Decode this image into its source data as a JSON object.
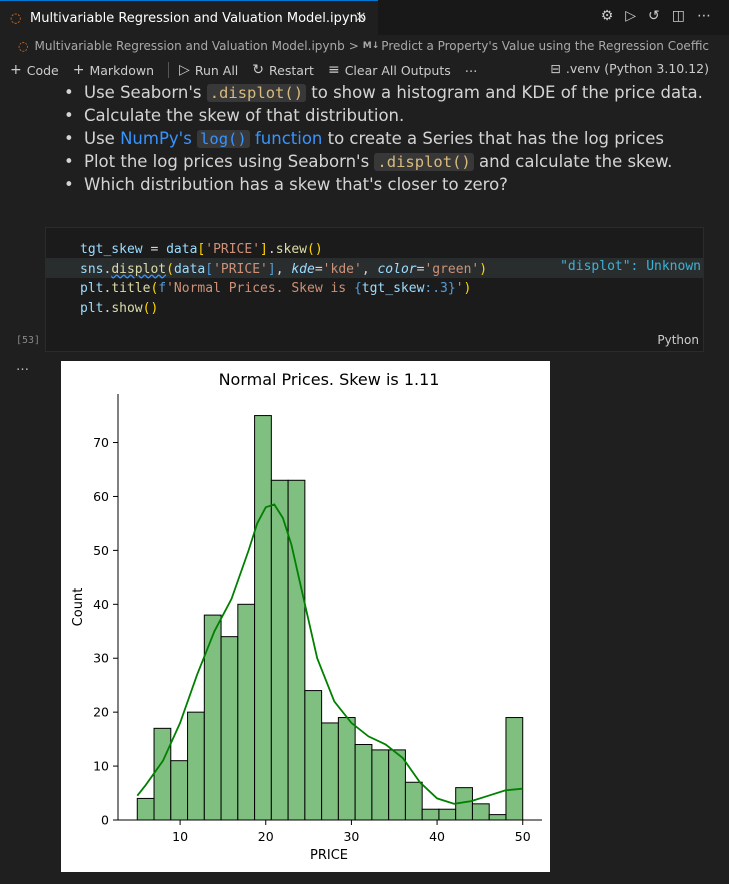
{
  "tab": {
    "title": "Multivariable Regression and Valuation Model.ipynb",
    "close": "×"
  },
  "tab_actions": {
    "settings": "⚙",
    "run": "▷",
    "history": "↺",
    "split": "◫",
    "more": "⋯"
  },
  "breadcrumb": {
    "file": "Multivariable Regression and Valuation Model.ipynb",
    "sep": ">",
    "md_badge": "M↓",
    "section": "Predict a Property's Value using the Regression Coeffic"
  },
  "toolbar": {
    "code": "Code",
    "markdown": "Markdown",
    "run_all": "Run All",
    "restart": "Restart",
    "clear": "Clear All Outputs",
    "more": "⋯",
    "kernel": ".venv (Python 3.10.12)"
  },
  "markdown": {
    "l1_a": "Use Seaborn's ",
    "l1_code": ".displot()",
    "l1_b": " to show a histogram and KDE of the price data.",
    "l2": "Calculate the skew of that distribution.",
    "l3_a": "Use ",
    "l3_link1": "NumPy's ",
    "l3_code": "log()",
    "l3_link2": " function",
    "l3_b": " to create a Series that has the log prices",
    "l4_a": "Plot the log prices using Seaborn's ",
    "l4_code": ".displot()",
    "l4_b": " and calculate the skew.",
    "l5": "Which distribution has a skew that's closer to zero?"
  },
  "code_cell": {
    "hint": "\"displot\": Unknown",
    "language": "Python",
    "exec_count": "[53]",
    "output_dots": "…"
  },
  "chart_data": {
    "type": "bar",
    "title": "Normal Prices. Skew is 1.11",
    "xlabel": "PRICE",
    "ylabel": "Count",
    "xlim": [
      2.75,
      52.25
    ],
    "ylim": [
      0,
      79
    ],
    "xticks": [
      10,
      20,
      30,
      40,
      50
    ],
    "yticks": [
      0,
      10,
      20,
      30,
      40,
      50,
      60,
      70
    ],
    "bin_edges": [
      5.0,
      6.957,
      8.913,
      10.87,
      12.826,
      14.783,
      16.739,
      18.696,
      20.652,
      22.609,
      24.565,
      26.522,
      28.478,
      30.435,
      32.391,
      34.348,
      36.304,
      38.261,
      40.217,
      42.174,
      44.13,
      46.087,
      48.043,
      50.0
    ],
    "values": [
      4,
      17,
      11,
      20,
      38,
      34,
      40,
      75,
      63,
      63,
      24,
      18,
      19,
      14,
      13,
      13,
      7,
      2,
      2,
      6,
      3,
      1,
      19
    ],
    "kde": {
      "x": [
        5,
        6,
        8,
        10,
        12,
        14,
        16,
        18,
        19,
        20,
        21,
        22,
        23,
        24,
        26,
        28,
        30,
        32,
        34,
        36,
        38,
        40,
        42,
        44,
        46,
        48,
        50
      ],
      "y": [
        4.5,
        6.5,
        11,
        18,
        27,
        35,
        41,
        50,
        55,
        58,
        58.5,
        56,
        51,
        44,
        30,
        22,
        18,
        15.5,
        14,
        11.5,
        7,
        4,
        3,
        3.5,
        4.5,
        5.5,
        5.8
      ]
    },
    "bar_color": "#7fbf7f",
    "bar_edge": "#000000",
    "kde_color": "#008000"
  }
}
